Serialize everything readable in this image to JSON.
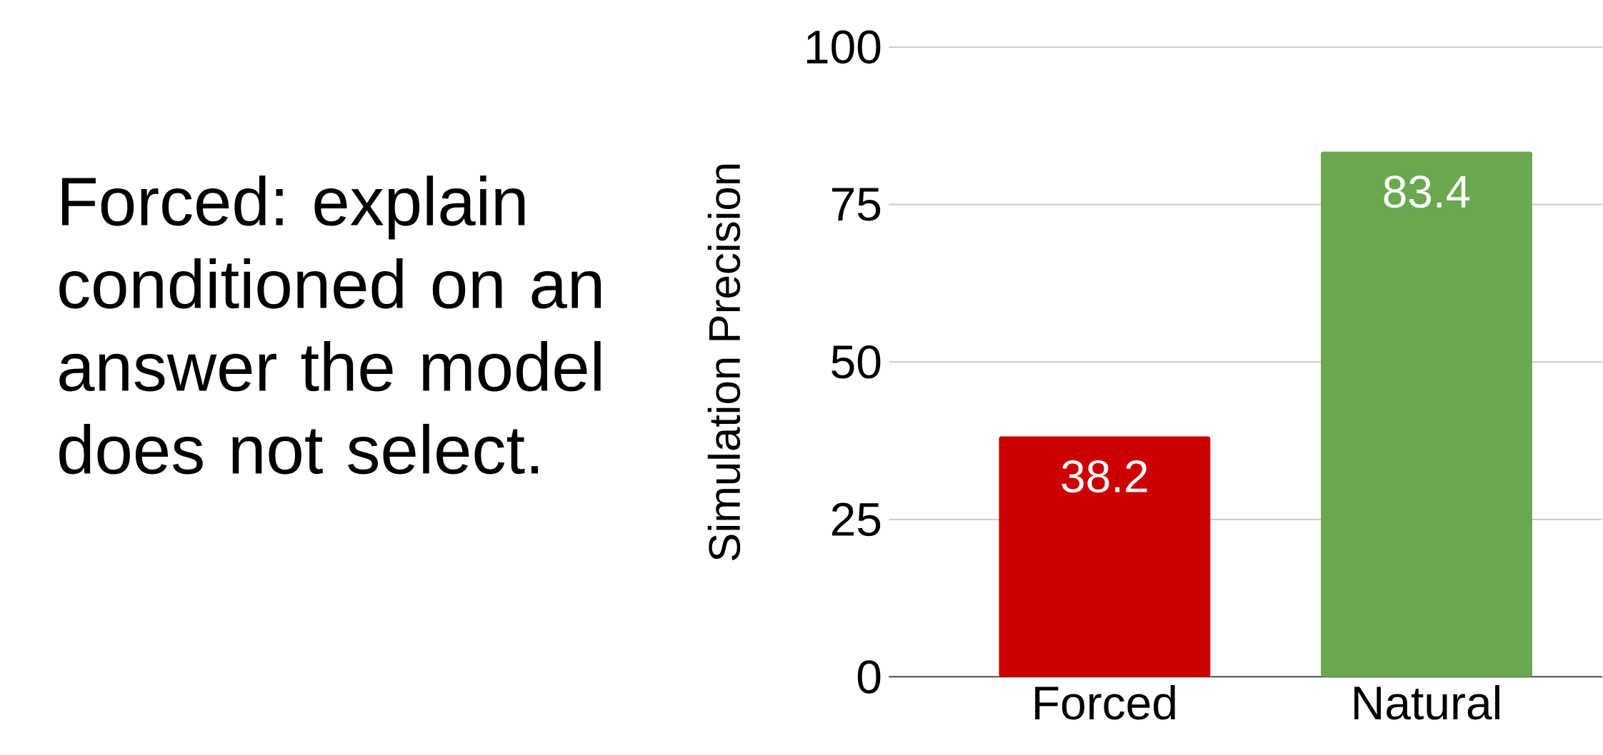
{
  "chart_data": {
    "type": "bar",
    "ylabel": "Simulation Precision",
    "categories": [
      "Forced",
      "Natural"
    ],
    "values": [
      38.2,
      83.4
    ],
    "colors": [
      "#cc0000",
      "#6aa84f"
    ],
    "ylim": [
      0,
      100
    ],
    "yticks": [
      0,
      25,
      50,
      75,
      100
    ],
    "grid": "y",
    "data_labels": true,
    "annotations": [
      "Forced: explain conditioned on an answer the model does not select."
    ]
  }
}
